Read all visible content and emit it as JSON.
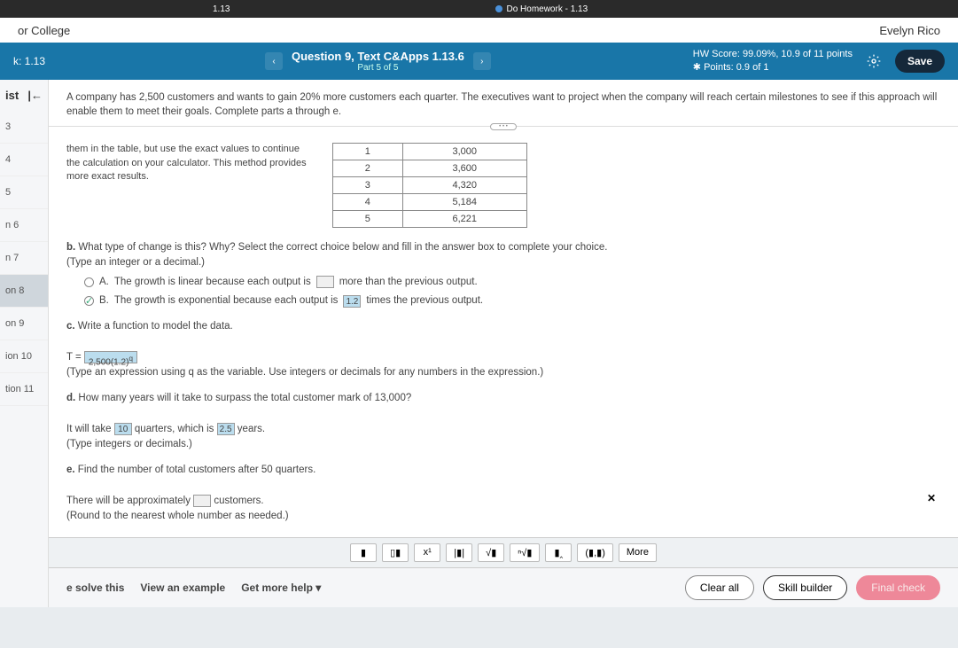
{
  "browser": {
    "tab1": "1.13",
    "tab2": "Do Homework - 1.13"
  },
  "topbar": {
    "course": "or College",
    "user": "Evelyn Rico"
  },
  "header": {
    "hw": "k: 1.13",
    "title": "Question 9, Text C&Apps 1.13.6",
    "part": "Part 5 of 5",
    "score_line1": "HW Score: 99.09%, 10.9 of 11 points",
    "score_line2": "Points: 0.9 of 1",
    "save": "Save"
  },
  "sidebar": {
    "head": "ist",
    "items": [
      "3",
      "4",
      "5",
      "n 6",
      "n 7",
      "on 8",
      "on 9",
      "ion 10",
      "tion 11"
    ],
    "active_index": 5
  },
  "prompt": "A company has 2,500 customers and wants to gain 20% more customers each quarter. The executives want to project when the company will reach certain milestones to see if this approach will enable them to meet their goals. Complete parts a through e.",
  "table_note": "them in the table, but use the exact values to continue the calculation on your calculator. This method provides more exact results.",
  "table_rows": [
    [
      "1",
      "3,000"
    ],
    [
      "2",
      "3,600"
    ],
    [
      "3",
      "4,320"
    ],
    [
      "4",
      "5,184"
    ],
    [
      "5",
      "6,221"
    ]
  ],
  "parts": {
    "b": {
      "text": "What type of change is this? Why? Select the correct choice below and fill in the answer box to complete your choice.",
      "hint": "(Type an integer or a decimal.)",
      "choiceA_pre": "The growth is linear because each output is",
      "choiceA_post": "more than the previous output.",
      "choiceB_pre": "The growth is exponential because each output is",
      "choiceB_val": "1.2",
      "choiceB_post": "times the previous output."
    },
    "c": {
      "text": "Write a function to model the data.",
      "eq_pre": "T =",
      "eq_val": "2,500(1.2)",
      "eq_sup": "q",
      "hint": "(Type an expression using q as the variable. Use integers or decimals for any numbers in the expression.)"
    },
    "d": {
      "text": "How many years will it take to surpass the total customer mark of 13,000?",
      "ans_pre": "It will take",
      "ans_q": "10",
      "ans_mid": "quarters, which is",
      "ans_y": "2.5",
      "ans_post": "years.",
      "hint": "(Type integers or decimals.)"
    },
    "e": {
      "text": "Find the number of total customers after 50 quarters.",
      "ans_pre": "There will be approximately",
      "ans_post": "customers.",
      "hint": "(Round to the nearest whole number as needed.)"
    }
  },
  "palette": [
    "▮",
    "▯▮",
    "x¹",
    "|▮|",
    "√▮",
    "ⁿ√▮",
    "▮‸",
    "(▮,▮)",
    "More"
  ],
  "footer": {
    "solve": "e solve this",
    "example": "View an example",
    "help": "Get more help ▾",
    "clear": "Clear all",
    "skill": "Skill builder",
    "final": "Final check"
  }
}
